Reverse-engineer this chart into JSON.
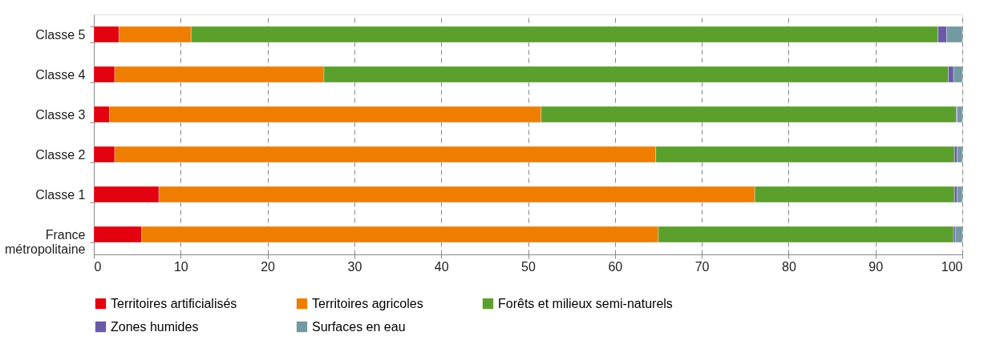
{
  "chart_data": {
    "type": "bar",
    "orientation": "horizontal",
    "stacked": true,
    "categories": [
      "Classe 5",
      "Classe 4",
      "Classe 3",
      "Classe 2",
      "Classe 1",
      "France métropolitaine"
    ],
    "series": [
      {
        "name": "Territoires artificialisés",
        "color": "#e3000f",
        "values": [
          2.9,
          2.4,
          1.8,
          2.4,
          7.5,
          5.5
        ]
      },
      {
        "name": "Territoires agricoles",
        "color": "#ef7d00",
        "values": [
          8.3,
          24.1,
          49.7,
          62.3,
          68.6,
          59.5
        ]
      },
      {
        "name": "Forêts et milieux semi-naturels",
        "color": "#5ba02c",
        "values": [
          86.0,
          71.9,
          47.8,
          34.4,
          23.0,
          34.0
        ]
      },
      {
        "name": "Zones humides",
        "color": "#6a5aa8",
        "values": [
          1.0,
          0.6,
          0.1,
          0.3,
          0.3,
          0.2
        ]
      },
      {
        "name": "Surfaces en eau",
        "color": "#7399a3",
        "values": [
          1.8,
          1.0,
          0.6,
          0.6,
          0.6,
          0.8
        ]
      }
    ],
    "xlim": [
      0,
      100
    ],
    "xticks": [
      0,
      10,
      20,
      30,
      40,
      50,
      60,
      70,
      80,
      90,
      100
    ],
    "grid": "x",
    "legend": "bottom"
  }
}
